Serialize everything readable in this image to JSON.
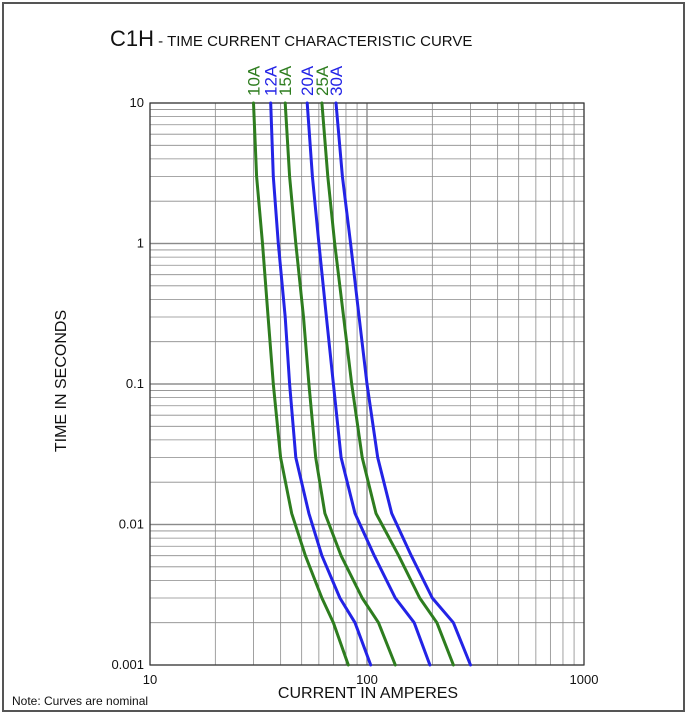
{
  "title": {
    "main": "C1H",
    "sub": " - TIME CURRENT CHARACTERISTIC CURVE"
  },
  "note": "Note: Curves are nominal",
  "colors": {
    "frame": "#555555",
    "grid": "#8a8a8a",
    "green": "#2e7d1f",
    "blue": "#2323e6",
    "text": "#111111"
  },
  "chart_data": {
    "type": "line",
    "xscale": "log",
    "yscale": "log",
    "xlabel": "CURRENT IN AMPERES",
    "ylabel": "TIME IN SECONDS",
    "xlim": [
      10,
      1000
    ],
    "ylim": [
      0.001,
      10
    ],
    "x_ticks": [
      {
        "value": 10,
        "label": "10"
      },
      {
        "value": 100,
        "label": "100"
      },
      {
        "value": 1000,
        "label": "1000"
      }
    ],
    "y_ticks": [
      {
        "value": 10,
        "label": "10"
      },
      {
        "value": 1,
        "label": "1"
      },
      {
        "value": 0.1,
        "label": "0.1"
      },
      {
        "value": 0.01,
        "label": "0.01"
      },
      {
        "value": 0.001,
        "label": "0.001"
      }
    ],
    "grid": true,
    "series": [
      {
        "name": "10A",
        "color": "green",
        "x": [
          30,
          31,
          33,
          35,
          37,
          40,
          45,
          52,
          62,
          70,
          82
        ],
        "y": [
          10,
          3,
          1,
          0.3,
          0.1,
          0.03,
          0.012,
          0.006,
          0.003,
          0.002,
          0.001
        ]
      },
      {
        "name": "12A",
        "color": "blue",
        "x": [
          36,
          37,
          39,
          42,
          44,
          47,
          54,
          62,
          75,
          88,
          104
        ],
        "y": [
          10,
          3,
          1,
          0.3,
          0.1,
          0.03,
          0.012,
          0.006,
          0.003,
          0.002,
          0.001
        ]
      },
      {
        "name": "15A",
        "color": "green",
        "x": [
          42,
          44,
          47,
          51,
          54,
          58,
          64,
          76,
          95,
          113,
          135
        ],
        "y": [
          10,
          3,
          1,
          0.3,
          0.1,
          0.03,
          0.012,
          0.006,
          0.003,
          0.002,
          0.001
        ]
      },
      {
        "name": "20A",
        "color": "blue",
        "x": [
          53,
          56,
          60,
          65,
          70,
          76,
          88,
          108,
          135,
          165,
          195
        ],
        "y": [
          10,
          3,
          1,
          0.3,
          0.1,
          0.03,
          0.012,
          0.006,
          0.003,
          0.002,
          0.001
        ]
      },
      {
        "name": "25A",
        "color": "green",
        "x": [
          62,
          66,
          71,
          78,
          85,
          95,
          110,
          140,
          175,
          210,
          250
        ],
        "y": [
          10,
          3,
          1,
          0.3,
          0.1,
          0.03,
          0.012,
          0.006,
          0.003,
          0.002,
          0.001
        ]
      },
      {
        "name": "30A",
        "color": "blue",
        "x": [
          72,
          77,
          84,
          92,
          100,
          112,
          130,
          160,
          200,
          250,
          300
        ],
        "y": [
          10,
          3,
          1,
          0.3,
          0.1,
          0.03,
          0.012,
          0.006,
          0.003,
          0.002,
          0.001
        ]
      }
    ]
  }
}
